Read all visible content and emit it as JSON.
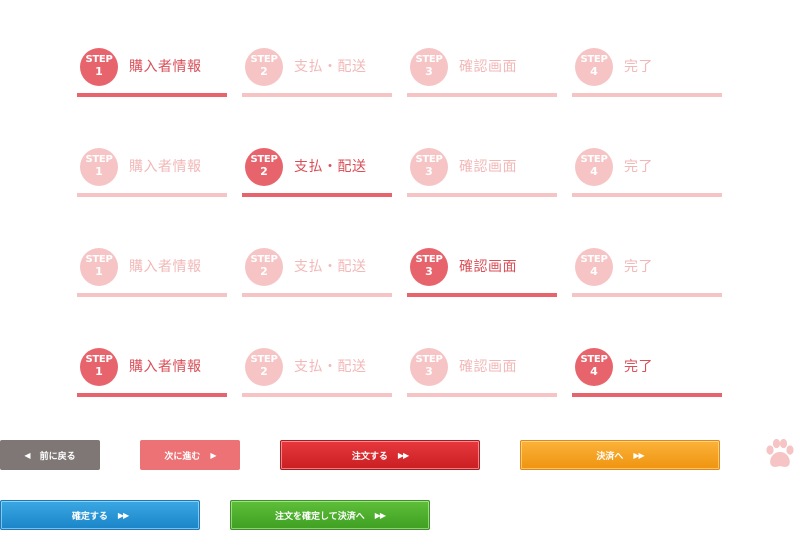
{
  "step_word": "STEP",
  "steps": [
    {
      "number": "1",
      "label": "購入者情報"
    },
    {
      "number": "2",
      "label": "支払・配送"
    },
    {
      "number": "3",
      "label": "確認画面"
    },
    {
      "number": "4",
      "label": "完了"
    }
  ],
  "progress_bars": [
    {
      "active_steps": [
        1
      ]
    },
    {
      "active_steps": [
        2
      ]
    },
    {
      "active_steps": [
        3
      ]
    },
    {
      "active_steps": [
        1,
        4
      ]
    }
  ],
  "buttons": {
    "back": "前に戻る",
    "next": "次に進む",
    "order": "注文する",
    "pay": "決済へ",
    "confirm": "確定する",
    "confirm_and_pay": "注文を確定して決済へ"
  },
  "icons": {
    "left_arrow": "◀",
    "right_arrow": "▶",
    "double_right_arrow": "▶▶",
    "paw": "paw-icon"
  },
  "colors": {
    "active_step": "#e8646c",
    "inactive_step": "#f6c4c4",
    "back_button": "#7f7776",
    "next_button": "#ec7275",
    "order_button": "#d82a2e",
    "pay_button": "#f5a124",
    "confirm_button": "#2896d6",
    "confirm_pay_button": "#4faf2e",
    "paw": "#f6c4c4"
  }
}
